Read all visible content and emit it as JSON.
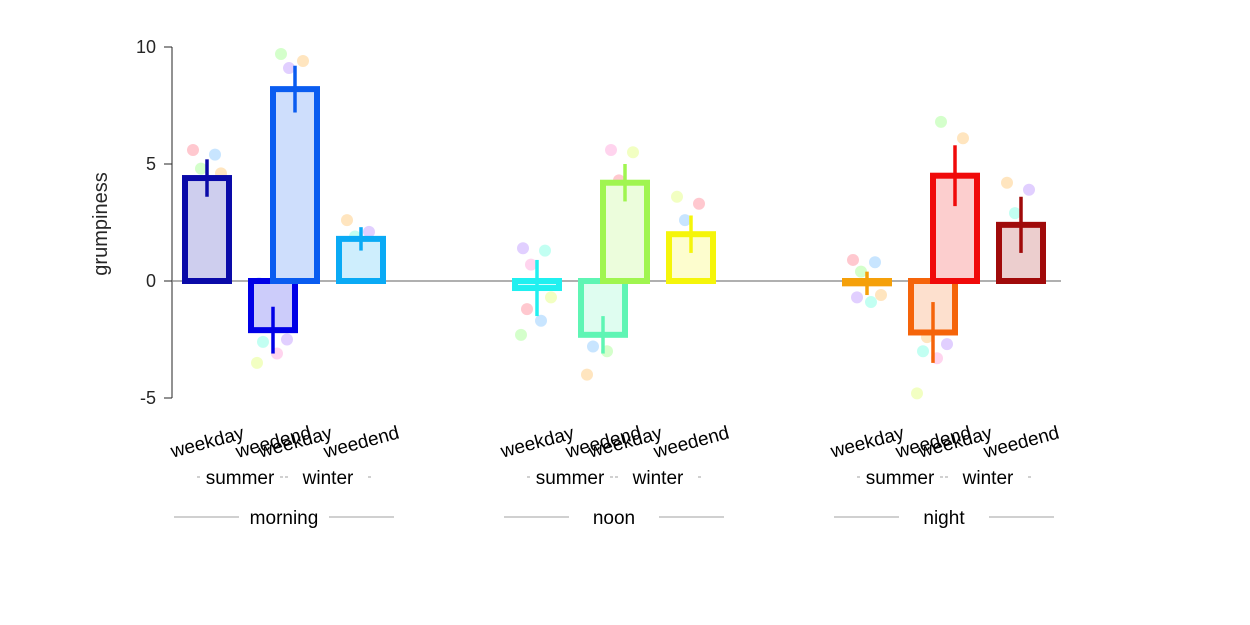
{
  "chart_data": {
    "type": "bar",
    "ylabel": "grumpiness",
    "ylim": [
      -5,
      10
    ],
    "yticks": [
      -5,
      0,
      5,
      10
    ],
    "grid": false,
    "level1": [
      "morning",
      "noon",
      "night"
    ],
    "level2": [
      "summer",
      "winter"
    ],
    "level3": [
      "weekday",
      "weedend"
    ],
    "bars": [
      {
        "time": "morning",
        "season": "summer",
        "day": "weekday",
        "value": 4.4,
        "err": 0.8,
        "color": "#0a0aa8",
        "points": [
          5.6,
          5.4,
          4.8,
          4.6,
          4.2,
          3.9,
          3.5,
          2.9
        ]
      },
      {
        "time": "morning",
        "season": "summer",
        "day": "weedend",
        "value": -2.1,
        "err": 1.0,
        "color": "#0000e6",
        "points": [
          -0.1,
          -1.2,
          -1.9,
          -2.5,
          -2.6,
          -3.1,
          -3.5
        ]
      },
      {
        "time": "morning",
        "season": "winter",
        "day": "weekday",
        "value": 8.2,
        "err": 1.0,
        "color": "#0a5cf0",
        "points": [
          9.7,
          9.4,
          9.1,
          8.0,
          7.6,
          7.2,
          6.6
        ]
      },
      {
        "time": "morning",
        "season": "winter",
        "day": "weedend",
        "value": 1.8,
        "err": 0.5,
        "color": "#0aaaf5",
        "points": [
          2.6,
          2.1,
          1.9,
          1.5,
          1.2,
          0.8
        ]
      },
      {
        "time": "noon",
        "season": "summer",
        "day": "weekday",
        "value": -0.3,
        "err": 1.2,
        "color": "#20f0f0",
        "points": [
          1.4,
          1.3,
          0.7,
          -0.7,
          -1.2,
          -1.7,
          -2.3
        ]
      },
      {
        "time": "noon",
        "season": "summer",
        "day": "weedend",
        "value": -2.3,
        "err": 0.8,
        "color": "#5ff5b4",
        "points": [
          -1.2,
          -1.3,
          -1.9,
          -2.0,
          -2.8,
          -3.0,
          -4.0
        ]
      },
      {
        "time": "noon",
        "season": "winter",
        "day": "weekday",
        "value": 4.2,
        "err": 0.8,
        "color": "#a0f550",
        "points": [
          5.6,
          5.5,
          4.3,
          4.0,
          3.9,
          3.7,
          3.1
        ]
      },
      {
        "time": "noon",
        "season": "winter",
        "day": "weedend",
        "value": 2.0,
        "err": 0.8,
        "color": "#f5f50a",
        "points": [
          3.6,
          3.3,
          2.6,
          1.7,
          1.5,
          1.3,
          0.8
        ]
      },
      {
        "time": "night",
        "season": "summer",
        "day": "weekday",
        "value": -0.1,
        "err": 0.5,
        "color": "#f5a00a",
        "points": [
          0.9,
          0.8,
          0.4,
          -0.6,
          -0.7,
          -0.9
        ]
      },
      {
        "time": "night",
        "season": "summer",
        "day": "weedend",
        "value": -2.2,
        "err": 1.3,
        "color": "#f5640a",
        "points": [
          -0.3,
          -0.8,
          -2.4,
          -2.7,
          -3.0,
          -3.3,
          -4.8
        ]
      },
      {
        "time": "night",
        "season": "winter",
        "day": "weekday",
        "value": 4.5,
        "err": 1.3,
        "color": "#f00a0a",
        "points": [
          6.8,
          6.1,
          4.3,
          3.8,
          3.5,
          2.7
        ]
      },
      {
        "time": "night",
        "season": "winter",
        "day": "weedend",
        "value": 2.4,
        "err": 1.2,
        "color": "#a00a0a",
        "points": [
          4.2,
          3.9,
          2.9,
          2.1,
          1.3,
          0.8
        ]
      }
    ]
  }
}
